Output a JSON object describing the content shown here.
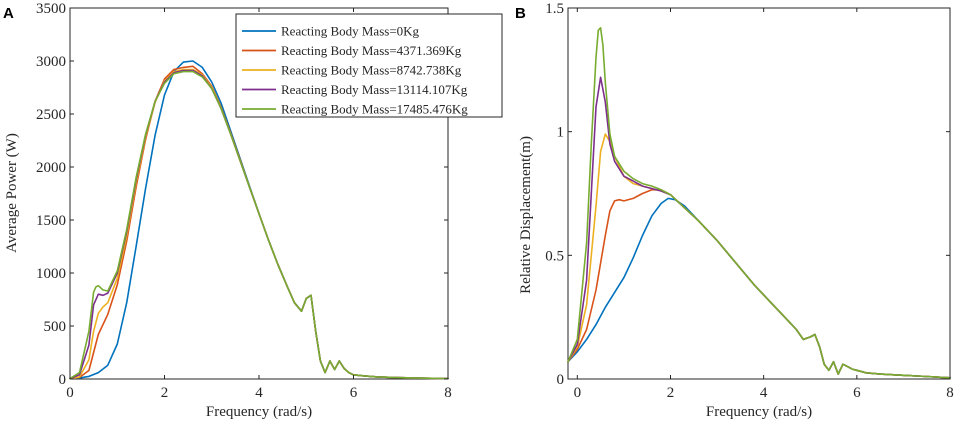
{
  "chart_data": [
    {
      "type": "line",
      "panel": "A",
      "title": "",
      "xlabel": "Frequency (rad/s)",
      "ylabel": "Average Power (W)",
      "xlim": [
        0,
        8
      ],
      "ylim": [
        0,
        3500
      ],
      "xticks": [
        0,
        2,
        4,
        6,
        8
      ],
      "yticks": [
        0,
        500,
        1000,
        1500,
        2000,
        2500,
        3000,
        3500
      ],
      "grid": false,
      "legend_position": "top-right",
      "series": [
        {
          "name": "Reacting Body Mass=0Kg",
          "color": "#0072BD",
          "x": [
            0,
            0.2,
            0.4,
            0.6,
            0.8,
            1.0,
            1.2,
            1.4,
            1.6,
            1.8,
            2.0,
            2.2,
            2.4,
            2.6,
            2.8,
            3.0,
            3.2,
            3.4,
            3.6,
            3.8,
            4.0,
            4.2,
            4.4,
            4.6,
            4.75,
            4.9,
            5.0,
            5.1,
            5.2,
            5.3,
            5.4,
            5.5,
            5.6,
            5.7,
            5.8,
            5.9,
            6.0,
            6.2,
            6.5,
            7.0,
            7.5,
            8.0
          ],
          "y": [
            5,
            10,
            25,
            60,
            130,
            330,
            720,
            1250,
            1800,
            2300,
            2680,
            2900,
            2990,
            3000,
            2940,
            2800,
            2600,
            2340,
            2080,
            1820,
            1560,
            1310,
            1080,
            870,
            720,
            640,
            760,
            790,
            450,
            170,
            60,
            170,
            90,
            170,
            100,
            60,
            40,
            30,
            20,
            12,
            8,
            5
          ]
        },
        {
          "name": "Reacting Body Mass=4371.369Kg",
          "color": "#D95319",
          "x": [
            0,
            0.2,
            0.4,
            0.5,
            0.6,
            0.8,
            1.0,
            1.2,
            1.4,
            1.6,
            1.8,
            2.0,
            2.2,
            2.4,
            2.6,
            2.8,
            3.0,
            3.2,
            3.4,
            3.6,
            3.8,
            4.0,
            4.2,
            4.4,
            4.6,
            4.75,
            4.9,
            5.0,
            5.1,
            5.2,
            5.3,
            5.4,
            5.5,
            5.6,
            5.7,
            5.8,
            5.9,
            6.0,
            6.2,
            6.5,
            7.0,
            7.5,
            8.0
          ],
          "y": [
            5,
            15,
            80,
            250,
            420,
            610,
            890,
            1300,
            1810,
            2260,
            2620,
            2830,
            2920,
            2940,
            2950,
            2880,
            2760,
            2560,
            2320,
            2070,
            1810,
            1560,
            1310,
            1080,
            870,
            720,
            640,
            760,
            790,
            450,
            170,
            60,
            170,
            90,
            170,
            100,
            60,
            40,
            30,
            20,
            12,
            8,
            5
          ]
        },
        {
          "name": "Reacting Body Mass=8742.738Kg",
          "color": "#EDB120",
          "x": [
            0,
            0.2,
            0.4,
            0.5,
            0.6,
            0.7,
            0.8,
            1.0,
            1.2,
            1.4,
            1.6,
            1.8,
            2.0,
            2.2,
            2.4,
            2.6,
            2.8,
            3.0,
            3.2,
            3.4,
            3.6,
            3.8,
            4.0,
            4.2,
            4.4,
            4.6,
            4.75,
            4.9,
            5.0,
            5.1,
            5.2,
            5.3,
            5.4,
            5.5,
            5.6,
            5.7,
            5.8,
            5.9,
            6.0,
            6.2,
            6.5,
            7.0,
            7.5,
            8.0
          ],
          "y": [
            5,
            20,
            180,
            450,
            620,
            680,
            720,
            950,
            1350,
            1850,
            2280,
            2610,
            2810,
            2900,
            2920,
            2920,
            2870,
            2750,
            2550,
            2310,
            2060,
            1810,
            1560,
            1310,
            1080,
            870,
            720,
            640,
            760,
            790,
            450,
            170,
            60,
            170,
            90,
            170,
            100,
            60,
            40,
            30,
            20,
            12,
            8,
            5
          ]
        },
        {
          "name": "Reacting Body Mass=13114.107Kg",
          "color": "#7E2F8E",
          "x": [
            0,
            0.2,
            0.4,
            0.5,
            0.6,
            0.7,
            0.8,
            1.0,
            1.2,
            1.4,
            1.6,
            1.8,
            2.0,
            2.2,
            2.4,
            2.6,
            2.8,
            3.0,
            3.2,
            3.4,
            3.6,
            3.8,
            4.0,
            4.2,
            4.4,
            4.6,
            4.75,
            4.9,
            5.0,
            5.1,
            5.2,
            5.3,
            5.4,
            5.5,
            5.6,
            5.7,
            5.8,
            5.9,
            6.0,
            6.2,
            6.5,
            7.0,
            7.5,
            8.0
          ],
          "y": [
            5,
            40,
            320,
            700,
            800,
            790,
            810,
            1000,
            1390,
            1880,
            2300,
            2620,
            2800,
            2890,
            2910,
            2910,
            2860,
            2740,
            2550,
            2310,
            2060,
            1810,
            1560,
            1310,
            1080,
            870,
            720,
            640,
            760,
            790,
            450,
            170,
            60,
            170,
            90,
            170,
            100,
            60,
            40,
            30,
            20,
            12,
            8,
            5
          ]
        },
        {
          "name": "Reacting Body Mass=17485.476Kg",
          "color": "#77AC30",
          "x": [
            0,
            0.2,
            0.4,
            0.5,
            0.55,
            0.6,
            0.7,
            0.8,
            1.0,
            1.2,
            1.4,
            1.6,
            1.8,
            2.0,
            2.2,
            2.4,
            2.6,
            2.8,
            3.0,
            3.2,
            3.4,
            3.6,
            3.8,
            4.0,
            4.2,
            4.4,
            4.6,
            4.75,
            4.9,
            5.0,
            5.1,
            5.2,
            5.3,
            5.4,
            5.5,
            5.6,
            5.7,
            5.8,
            5.9,
            6.0,
            6.2,
            6.5,
            7.0,
            7.5,
            8.0
          ],
          "y": [
            5,
            60,
            450,
            820,
            870,
            880,
            840,
            830,
            1020,
            1410,
            1900,
            2310,
            2620,
            2790,
            2880,
            2900,
            2900,
            2850,
            2740,
            2550,
            2310,
            2060,
            1810,
            1560,
            1310,
            1080,
            870,
            720,
            640,
            760,
            790,
            450,
            170,
            60,
            170,
            90,
            170,
            100,
            60,
            40,
            30,
            20,
            12,
            8,
            5
          ]
        }
      ]
    },
    {
      "type": "line",
      "panel": "B",
      "title": "",
      "xlabel": "Frequency (rad/s)",
      "ylabel": "Relative Displacement(m)",
      "xlim": [
        -0.2,
        8
      ],
      "ylim": [
        0,
        1.5
      ],
      "xticks": [
        0,
        2,
        4,
        6,
        8
      ],
      "yticks": [
        0,
        0.5,
        1,
        1.5
      ],
      "grid": false,
      "series": [
        {
          "name": "Reacting Body Mass=0Kg",
          "color": "#0072BD",
          "x": [
            -0.2,
            0,
            0.2,
            0.4,
            0.6,
            0.8,
            1.0,
            1.2,
            1.4,
            1.6,
            1.8,
            1.95,
            2.1,
            2.3,
            2.6,
            3.0,
            3.4,
            3.8,
            4.2,
            4.5,
            4.7,
            4.85,
            5.0,
            5.1,
            5.2,
            5.3,
            5.4,
            5.5,
            5.6,
            5.7,
            5.8,
            5.9,
            6.0,
            6.2,
            6.5,
            7.0,
            7.5,
            8.0
          ],
          "y": [
            0.07,
            0.11,
            0.16,
            0.22,
            0.29,
            0.35,
            0.41,
            0.49,
            0.58,
            0.66,
            0.71,
            0.73,
            0.725,
            0.7,
            0.64,
            0.56,
            0.47,
            0.38,
            0.3,
            0.24,
            0.2,
            0.16,
            0.17,
            0.18,
            0.13,
            0.06,
            0.035,
            0.07,
            0.02,
            0.06,
            0.05,
            0.04,
            0.035,
            0.025,
            0.02,
            0.015,
            0.01,
            0.005
          ]
        },
        {
          "name": "Reacting Body Mass=4371.369Kg",
          "color": "#D95319",
          "x": [
            -0.2,
            0,
            0.2,
            0.4,
            0.6,
            0.7,
            0.8,
            0.9,
            1.0,
            1.2,
            1.4,
            1.6,
            1.8,
            2.0,
            2.2,
            2.6,
            3.0,
            3.4,
            3.8,
            4.2,
            4.5,
            4.7,
            4.85,
            5.0,
            5.1,
            5.2,
            5.3,
            5.4,
            5.5,
            5.6,
            5.7,
            5.8,
            5.9,
            6.0,
            6.2,
            6.5,
            7.0,
            7.5,
            8.0
          ],
          "y": [
            0.07,
            0.12,
            0.2,
            0.36,
            0.58,
            0.68,
            0.72,
            0.725,
            0.72,
            0.73,
            0.75,
            0.765,
            0.765,
            0.745,
            0.71,
            0.64,
            0.56,
            0.47,
            0.38,
            0.3,
            0.24,
            0.2,
            0.16,
            0.17,
            0.18,
            0.13,
            0.06,
            0.035,
            0.07,
            0.02,
            0.06,
            0.05,
            0.04,
            0.035,
            0.025,
            0.02,
            0.015,
            0.01,
            0.005
          ]
        },
        {
          "name": "Reacting Body Mass=8742.738Kg",
          "color": "#EDB120",
          "x": [
            -0.2,
            0,
            0.2,
            0.4,
            0.5,
            0.6,
            0.7,
            0.8,
            1.0,
            1.2,
            1.4,
            1.6,
            1.8,
            2.0,
            2.2,
            2.6,
            3.0,
            3.4,
            3.8,
            4.2,
            4.5,
            4.7,
            4.85,
            5.0,
            5.1,
            5.2,
            5.3,
            5.4,
            5.5,
            5.6,
            5.7,
            5.8,
            5.9,
            6.0,
            6.2,
            6.5,
            7.0,
            7.5,
            8.0
          ],
          "y": [
            0.07,
            0.13,
            0.3,
            0.7,
            0.92,
            0.99,
            0.96,
            0.9,
            0.82,
            0.79,
            0.78,
            0.77,
            0.76,
            0.745,
            0.71,
            0.64,
            0.56,
            0.47,
            0.38,
            0.3,
            0.24,
            0.2,
            0.16,
            0.17,
            0.18,
            0.13,
            0.06,
            0.035,
            0.07,
            0.02,
            0.06,
            0.05,
            0.04,
            0.035,
            0.025,
            0.02,
            0.015,
            0.01,
            0.005
          ]
        },
        {
          "name": "Reacting Body Mass=13114.107Kg",
          "color": "#7E2F8E",
          "x": [
            -0.2,
            0,
            0.2,
            0.3,
            0.4,
            0.5,
            0.6,
            0.7,
            0.8,
            1.0,
            1.2,
            1.4,
            1.6,
            1.8,
            2.0,
            2.2,
            2.6,
            3.0,
            3.4,
            3.8,
            4.2,
            4.5,
            4.7,
            4.85,
            5.0,
            5.1,
            5.2,
            5.3,
            5.4,
            5.5,
            5.6,
            5.7,
            5.8,
            5.9,
            6.0,
            6.2,
            6.5,
            7.0,
            7.5,
            8.0
          ],
          "y": [
            0.07,
            0.14,
            0.4,
            0.75,
            1.1,
            1.22,
            1.12,
            0.95,
            0.88,
            0.82,
            0.8,
            0.78,
            0.77,
            0.76,
            0.745,
            0.71,
            0.64,
            0.56,
            0.47,
            0.38,
            0.3,
            0.24,
            0.2,
            0.16,
            0.17,
            0.18,
            0.13,
            0.06,
            0.035,
            0.07,
            0.02,
            0.06,
            0.05,
            0.04,
            0.035,
            0.025,
            0.02,
            0.015,
            0.01,
            0.005
          ]
        },
        {
          "name": "Reacting Body Mass=17485.476Kg",
          "color": "#77AC30",
          "x": [
            -0.2,
            0,
            0.2,
            0.3,
            0.4,
            0.45,
            0.5,
            0.55,
            0.6,
            0.7,
            0.8,
            1.0,
            1.2,
            1.4,
            1.6,
            1.8,
            2.0,
            2.2,
            2.6,
            3.0,
            3.4,
            3.8,
            4.2,
            4.5,
            4.7,
            4.85,
            5.0,
            5.1,
            5.2,
            5.3,
            5.4,
            5.5,
            5.6,
            5.7,
            5.8,
            5.9,
            6.0,
            6.2,
            6.5,
            7.0,
            7.5,
            8.0
          ],
          "y": [
            0.07,
            0.16,
            0.55,
            0.95,
            1.3,
            1.41,
            1.42,
            1.35,
            1.2,
            0.99,
            0.9,
            0.84,
            0.81,
            0.79,
            0.78,
            0.765,
            0.745,
            0.71,
            0.64,
            0.56,
            0.47,
            0.38,
            0.3,
            0.24,
            0.2,
            0.16,
            0.17,
            0.18,
            0.13,
            0.06,
            0.035,
            0.07,
            0.02,
            0.06,
            0.05,
            0.04,
            0.035,
            0.025,
            0.02,
            0.015,
            0.01,
            0.005
          ]
        }
      ]
    }
  ]
}
